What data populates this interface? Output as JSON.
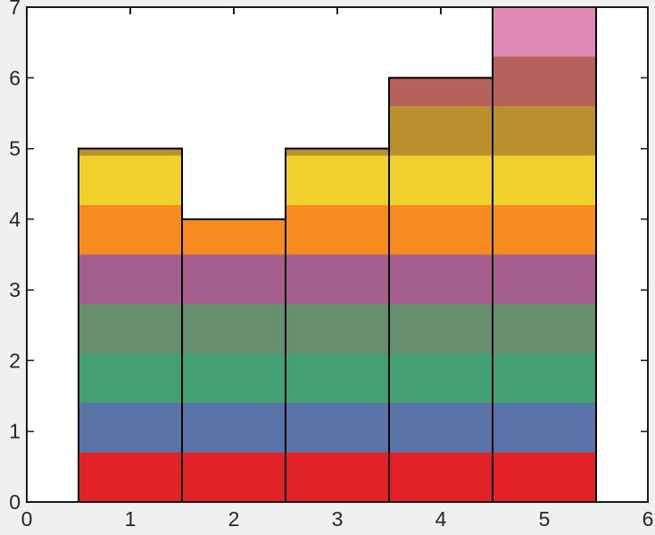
{
  "figure": {
    "background_color": "#f0f0f0",
    "plot_background_color": "#ffffff",
    "axis_color": "#1a1a1a",
    "tick_label_color": "#262626",
    "bar_edge_color": "#000000"
  },
  "chart_data": {
    "type": "bar",
    "title": "",
    "xlabel": "",
    "ylabel": "",
    "x": [
      1,
      2,
      3,
      4,
      5
    ],
    "values": [
      5,
      4,
      5,
      6,
      7
    ],
    "bar_width": 1,
    "xlim": [
      0,
      6
    ],
    "ylim": [
      0,
      7
    ],
    "x_tick_values": [
      0,
      1,
      2,
      3,
      4,
      5,
      6
    ],
    "x_tick_labels": [
      "0",
      "1",
      "2",
      "3",
      "4",
      "5",
      "6"
    ],
    "y_tick_values": [
      0,
      1,
      2,
      3,
      4,
      5,
      6,
      7
    ],
    "y_tick_labels": [
      "0",
      "1",
      "2",
      "3",
      "4",
      "5",
      "6",
      "7"
    ],
    "grid": false,
    "legend": "none",
    "band_height": 0.7,
    "band_colors": [
      "#e32227",
      "#5a74a9",
      "#42a073",
      "#668f6d",
      "#a55f8e",
      "#f68c1f",
      "#f2d02b",
      "#ba8f2e",
      "#b7615c",
      "#de8ab4"
    ]
  }
}
